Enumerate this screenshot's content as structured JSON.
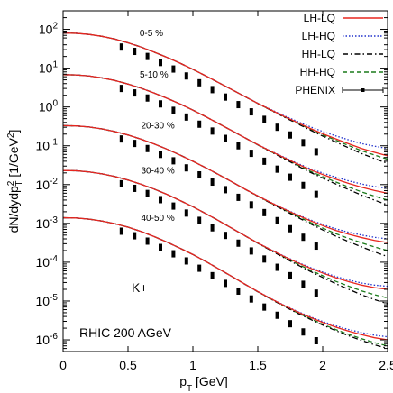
{
  "chart_data": {
    "type": "line",
    "x_axis": {
      "range": [
        0,
        2.5
      ],
      "ticks": [
        0,
        0.5,
        1,
        1.5,
        2,
        2.5
      ],
      "tick_labels": [
        "0",
        "0.5",
        "1",
        "1.5",
        "2",
        "2.5"
      ]
    },
    "y_axis": {
      "scale": "log",
      "range": [
        5e-07,
        300
      ],
      "ticks": [
        100,
        10,
        1,
        0.1,
        0.01,
        0.001,
        0.0001,
        1e-05,
        1e-06
      ],
      "tick_labels": [
        "10^2",
        "10^1",
        "10^0",
        "10^-1",
        "10^-2",
        "10^-3",
        "10^-4",
        "10^-5",
        "10^-6"
      ]
    },
    "legend": {
      "placement": "top-right",
      "entries": [
        {
          "label": "LH-LQ",
          "color": "#e8261e",
          "dash": "solid"
        },
        {
          "label": "LH-HQ",
          "color": "#2233cc",
          "dash": "dotted"
        },
        {
          "label": "HH-LQ",
          "color": "#000000",
          "dash": "dashdot"
        },
        {
          "label": "HH-HQ",
          "color": "#1a7a1a",
          "dash": "dashed"
        },
        {
          "label": "PHENIX",
          "color": "#000000",
          "dash": "marker"
        }
      ]
    },
    "annotations": [
      "K+",
      "RHIC 200 AGeV"
    ],
    "curve_x": [
      0,
      0.1,
      0.2,
      0.3,
      0.4,
      0.5,
      0.6,
      0.7,
      0.8,
      0.9,
      1.0,
      1.1,
      1.2,
      1.3,
      1.4,
      1.5,
      1.6,
      1.7,
      1.8,
      1.9,
      2.0,
      2.1,
      2.2,
      2.3,
      2.4,
      2.5
    ],
    "centralities": [
      {
        "label": "0-5 %",
        "curve_y": [
          80,
          79,
          74,
          66,
          56,
          45,
          35,
          26,
          19,
          13.5,
          9.3,
          6.3,
          4.2,
          2.8,
          1.85,
          1.2,
          0.78,
          0.5,
          0.32,
          0.2,
          0.125,
          0.078,
          0.048,
          0.029,
          0.018,
          0.011
        ],
        "variant_end": {
          "LH-LQ": 0.055,
          "LH-HQ": 0.085,
          "HH-LQ": 0.035,
          "HH-HQ": 0.045
        },
        "phenix": {
          "x": [
            0.45,
            0.55,
            0.65,
            0.75,
            0.85,
            0.95,
            1.05,
            1.15,
            1.25,
            1.35,
            1.45,
            1.55,
            1.65,
            1.75,
            1.85,
            1.95
          ],
          "y": [
            35,
            27,
            20,
            14,
            9.5,
            6.3,
            4.2,
            2.8,
            1.8,
            1.15,
            0.75,
            0.48,
            0.3,
            0.19,
            0.12,
            0.07
          ]
        }
      },
      {
        "label": "5-10 %",
        "curve_y": [
          6.8,
          6.7,
          6.3,
          5.6,
          4.8,
          3.9,
          3.05,
          2.3,
          1.68,
          1.2,
          0.83,
          0.56,
          0.37,
          0.245,
          0.16,
          0.103,
          0.066,
          0.042,
          0.026,
          0.016,
          0.01,
          0.0062,
          0.0038,
          0.0023,
          0.0014,
          0.00085
        ],
        "variant_end": {
          "LH-LQ": 0.006,
          "LH-HQ": 0.008,
          "HH-LQ": 0.003,
          "HH-HQ": 0.004
        },
        "phenix": {
          "x": [
            0.45,
            0.55,
            0.65,
            0.75,
            0.85,
            0.95,
            1.05,
            1.15,
            1.25,
            1.35,
            1.45,
            1.55,
            1.65,
            1.75,
            1.85,
            1.95
          ],
          "y": [
            3.0,
            2.3,
            1.7,
            1.2,
            0.82,
            0.55,
            0.36,
            0.24,
            0.155,
            0.1,
            0.064,
            0.04,
            0.025,
            0.0155,
            0.0095,
            0.0056
          ]
        }
      },
      {
        "label": "20-30 %",
        "curve_y": [
          0.33,
          0.325,
          0.305,
          0.272,
          0.232,
          0.19,
          0.148,
          0.112,
          0.082,
          0.058,
          0.04,
          0.027,
          0.018,
          0.0118,
          0.0076,
          0.0049,
          0.0031,
          0.00195,
          0.00121,
          0.00074,
          0.00045,
          0.00027,
          0.000165,
          0.0001,
          6e-05,
          3.6e-05
        ],
        "variant_end": {
          "LH-LQ": 0.00032,
          "LH-HQ": 0.0004,
          "HH-LQ": 0.00014,
          "HH-HQ": 0.0002
        },
        "phenix": {
          "x": [
            0.45,
            0.55,
            0.65,
            0.75,
            0.85,
            0.95,
            1.05,
            1.15,
            1.25,
            1.35,
            1.45,
            1.55,
            1.65,
            1.75,
            1.85,
            1.95
          ],
          "y": [
            0.15,
            0.115,
            0.085,
            0.06,
            0.041,
            0.027,
            0.0178,
            0.0116,
            0.0074,
            0.0047,
            0.003,
            0.0019,
            0.00118,
            0.00073,
            0.00044,
            0.00026
          ]
        }
      },
      {
        "label": "30-40 %",
        "curve_y": [
          0.023,
          0.0227,
          0.0212,
          0.0189,
          0.0161,
          0.0131,
          0.0102,
          0.0077,
          0.0056,
          0.0039,
          0.0027,
          0.00178,
          0.00117,
          0.00075,
          0.00048,
          0.0003,
          0.000188,
          0.000116,
          7.1e-05,
          4.3e-05,
          2.6e-05,
          1.55e-05,
          9.3e-06,
          5.5e-06,
          3.3e-06,
          2e-06
        ],
        "variant_end": {
          "LH-LQ": 2e-05,
          "LH-HQ": 2.4e-05,
          "HH-LQ": 8.5e-06,
          "HH-HQ": 1.2e-05
        },
        "phenix": {
          "x": [
            0.45,
            0.55,
            0.65,
            0.75,
            0.85,
            0.95,
            1.05,
            1.15,
            1.25,
            1.35,
            1.45,
            1.55,
            1.65,
            1.75,
            1.85,
            1.95
          ],
          "y": [
            0.0105,
            0.008,
            0.0059,
            0.0041,
            0.0028,
            0.00185,
            0.0012,
            0.00077,
            0.00049,
            0.00031,
            0.000195,
            0.000121,
            7.4e-05,
            4.5e-05,
            2.7e-05,
            1.6e-05
          ]
        }
      },
      {
        "label": "40-50 %",
        "curve_y": [
          0.0014,
          0.00138,
          0.00129,
          0.00115,
          0.00098,
          0.0008,
          0.00062,
          0.00046,
          0.00033,
          0.00023,
          0.000158,
          0.000104,
          6.7e-05,
          4.3e-05,
          2.7e-05,
          1.68e-05,
          1.04e-05,
          6.4e-06,
          3.9e-06,
          2.4e-06,
          1.45e-06,
          8.8e-07,
          5.3e-07,
          3.2e-07,
          1.9e-07,
          1.15e-07
        ],
        "variant_end": {
          "LH-LQ": 1e-06,
          "LH-HQ": 1.2e-06,
          "HH-LQ": 6e-07,
          "HH-HQ": 7e-07
        },
        "phenix": {
          "x": [
            0.45,
            0.55,
            0.65,
            0.75,
            0.85,
            0.95,
            1.05,
            1.15,
            1.25,
            1.35,
            1.45,
            1.55,
            1.65,
            1.75,
            1.85,
            1.95
          ],
          "y": [
            0.00063,
            0.00048,
            0.00035,
            0.00024,
            0.000165,
            0.000108,
            7e-05,
            4.5e-05,
            2.85e-05,
            1.8e-05,
            1.13e-05,
            7e-06,
            4.3e-06,
            2.6e-06,
            1.6e-06,
            9.5e-07
          ]
        }
      }
    ]
  }
}
